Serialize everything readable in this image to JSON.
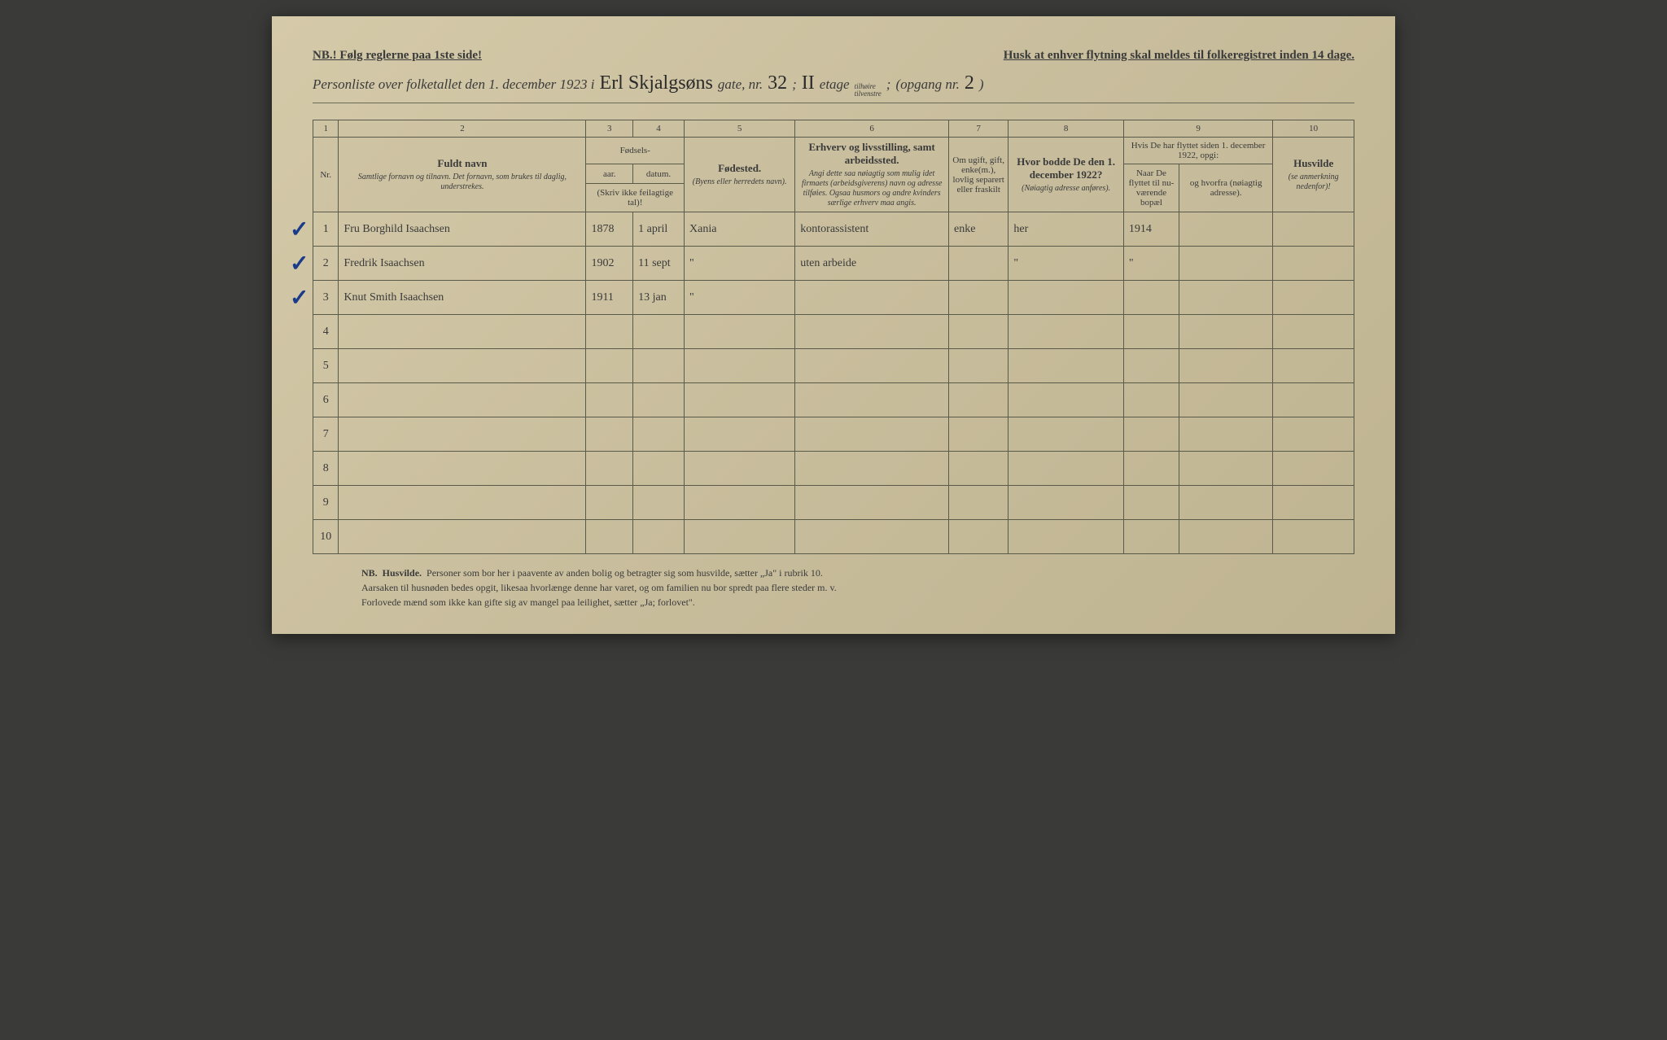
{
  "colors": {
    "page_bg_start": "#d4c9a8",
    "page_bg_end": "#bfb491",
    "text": "#3a3a3a",
    "border": "#5a5a4a",
    "handwriting": "#2a2a2a",
    "checkmark": "#1a3a8a",
    "body_bg": "#3a3a38"
  },
  "header": {
    "nb_left": "NB.! Følg reglerne paa 1ste side!",
    "nb_right": "Husk at enhver flytning skal meldes til folkeregistret inden 14 dage.",
    "line2_prefix": "Personliste over folketallet den 1. december 1923 i",
    "street_hand": "Erl Skjalgsøns",
    "gate_label": "gate, nr.",
    "gate_nr": "32",
    "semicolon1": ";",
    "etage_nr": "II",
    "etage_label": "etage",
    "side_top": "tilhøire",
    "side_bot": "tilvenstre",
    "semicolon2": ";",
    "opgang_label": "(opgang nr.",
    "opgang_nr": "2",
    "opgang_close": ")"
  },
  "columns": {
    "nums": [
      "1",
      "2",
      "3",
      "4",
      "5",
      "6",
      "7",
      "8",
      "9",
      "10"
    ],
    "c1": "Nr.",
    "c2_main": "Fuldt navn",
    "c2_sub": "Samtlige fornavn og tilnavn. Det fornavn, som brukes til daglig, understrekes.",
    "c34_top": "Fødsels-",
    "c3": "aar.",
    "c4": "datum.",
    "c34_sub": "(Skriv ikke feilagtige tal)!",
    "c5_main": "Fødested.",
    "c5_sub": "(Byens eller herredets navn).",
    "c6_main": "Erhverv og livsstilling, samt arbeidssted.",
    "c6_sub": "Angi dette saa nøiagtig som mulig idet firmaets (arbeidsgiverens) navn og adresse tilføies. Ogsaa husmors og andre kvinders særlige erhverv maa angis.",
    "c7": "Om ugift, gift, enke(m.), lovlig separert eller fraskilt",
    "c8_main": "Hvor bodde De den 1. december 1922?",
    "c8_sub": "(Nøiagtig adresse anføres).",
    "c9_top": "Hvis De har flyttet siden 1. december 1922, opgi:",
    "c9a": "Naar De flyttet til nu-værende bopæl",
    "c9b": "og hvorfra (nøiagtig adresse).",
    "c10_main": "Husvilde",
    "c10_sub": "(se anmerkning nedenfor)!"
  },
  "rows": [
    {
      "nr": "1",
      "check": "✓",
      "name": "Fru Borghild Isaachsen",
      "aar": "1878",
      "datum": "1 april",
      "fodested": "Xania",
      "erhverv": "kontorassistent",
      "status": "enke",
      "bodde": "her",
      "flyttet": "1914",
      "hvorfra": "",
      "husvilde": ""
    },
    {
      "nr": "2",
      "check": "✓",
      "name": "Fredrik Isaachsen",
      "aar": "1902",
      "datum": "11 sept",
      "fodested": "\"",
      "erhverv": "uten arbeide",
      "status": "",
      "bodde": "\"",
      "flyttet": "\"",
      "hvorfra": "",
      "husvilde": ""
    },
    {
      "nr": "3",
      "check": "✓",
      "name": "Knut Smith Isaachsen",
      "aar": "1911",
      "datum": "13 jan",
      "fodested": "\"",
      "erhverv": "",
      "status": "",
      "bodde": "",
      "flyttet": "",
      "hvorfra": "",
      "husvilde": ""
    },
    {
      "nr": "4",
      "check": "",
      "name": "",
      "aar": "",
      "datum": "",
      "fodested": "",
      "erhverv": "",
      "status": "",
      "bodde": "",
      "flyttet": "",
      "hvorfra": "",
      "husvilde": ""
    },
    {
      "nr": "5",
      "check": "",
      "name": "",
      "aar": "",
      "datum": "",
      "fodested": "",
      "erhverv": "",
      "status": "",
      "bodde": "",
      "flyttet": "",
      "hvorfra": "",
      "husvilde": ""
    },
    {
      "nr": "6",
      "check": "",
      "name": "",
      "aar": "",
      "datum": "",
      "fodested": "",
      "erhverv": "",
      "status": "",
      "bodde": "",
      "flyttet": "",
      "hvorfra": "",
      "husvilde": ""
    },
    {
      "nr": "7",
      "check": "",
      "name": "",
      "aar": "",
      "datum": "",
      "fodested": "",
      "erhverv": "",
      "status": "",
      "bodde": "",
      "flyttet": "",
      "hvorfra": "",
      "husvilde": ""
    },
    {
      "nr": "8",
      "check": "",
      "name": "",
      "aar": "",
      "datum": "",
      "fodested": "",
      "erhverv": "",
      "status": "",
      "bodde": "",
      "flyttet": "",
      "hvorfra": "",
      "husvilde": ""
    },
    {
      "nr": "9",
      "check": "",
      "name": "",
      "aar": "",
      "datum": "",
      "fodested": "",
      "erhverv": "",
      "status": "",
      "bodde": "",
      "flyttet": "",
      "hvorfra": "",
      "husvilde": ""
    },
    {
      "nr": "10",
      "check": "",
      "name": "",
      "aar": "",
      "datum": "",
      "fodested": "",
      "erhverv": "",
      "status": "",
      "bodde": "",
      "flyttet": "",
      "hvorfra": "",
      "husvilde": ""
    }
  ],
  "footer": {
    "nb": "NB.",
    "husvilde": "Husvilde.",
    "line1": "Personer som bor her i paavente av anden bolig og betragter sig som husvilde, sætter „Ja\" i rubrik 10.",
    "line2": "Aarsaken til husnøden bedes opgit, likesaa hvorlænge denne har varet, og om familien nu bor spredt paa flere steder m. v.",
    "line3": "Forlovede mænd som ikke kan gifte sig av mangel paa leilighet, sætter „Ja; forlovet\"."
  }
}
